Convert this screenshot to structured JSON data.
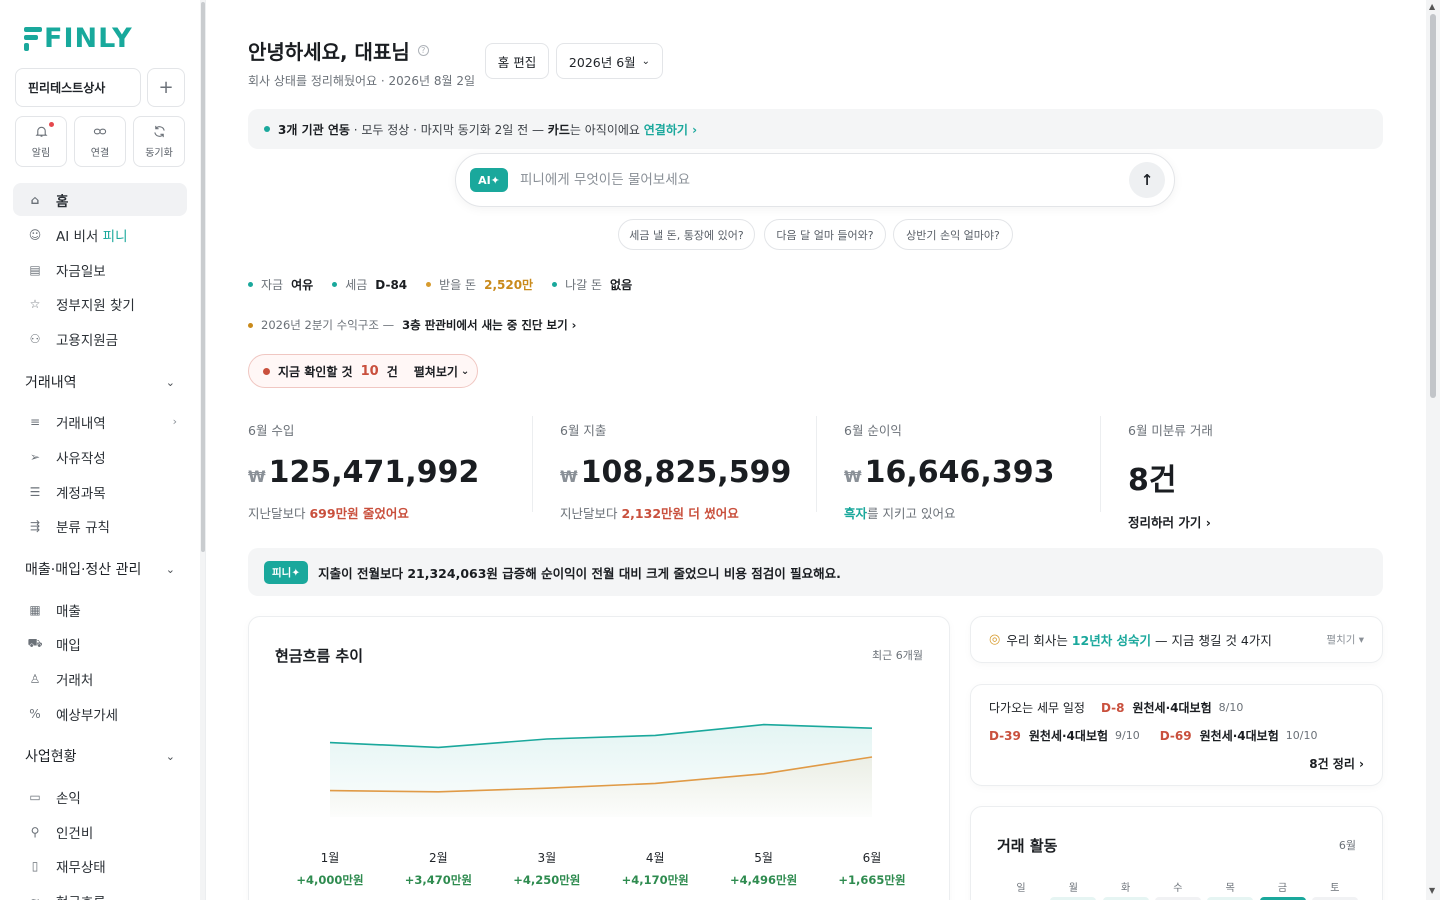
{
  "brand": {
    "logo": "FINLY",
    "accent": "#1aa89c"
  },
  "sidebar": {
    "company": "핀리테스트상사",
    "add": "+",
    "quick": [
      {
        "label": "알림",
        "icon": "bell-icon"
      },
      {
        "label": "연결",
        "icon": "link-icon"
      },
      {
        "label": "동기화",
        "icon": "sync-icon"
      }
    ],
    "top": [
      {
        "label": "홈",
        "icon": "home-icon"
      },
      {
        "label": "AI 비서",
        "label2": "피니",
        "icon": "robot-icon"
      },
      {
        "label": "자금일보",
        "icon": "report-icon"
      },
      {
        "label": "정부지원 찾기",
        "icon": "star-icon"
      },
      {
        "label": "고용지원금",
        "icon": "people-icon"
      }
    ],
    "sections": [
      {
        "title": "거래내역",
        "items": [
          "거래내역",
          "사유작성",
          "계정과목",
          "분류 규칙"
        ]
      },
      {
        "title": "매출·매입·정산 관리",
        "items": [
          "매출",
          "매입",
          "거래처",
          "예상부가세"
        ]
      },
      {
        "title": "사업현황",
        "items": [
          "손익",
          "인건비",
          "재무상태",
          "현금흐름"
        ]
      }
    ]
  },
  "header": {
    "greeting": "안녕하세요, 대표님",
    "help": "?",
    "subtitle": "회사 상태를 정리해뒀어요 · 2026년 8월 2일",
    "edit_home": "홈 편집",
    "month": "2026년 6월"
  },
  "banner": {
    "strong": "3개 기관 연동",
    "text": " · 모두 정상 · 마지막 동기화 2일 전 — ",
    "card": "카드",
    "text2": "는 아직이에요 ",
    "link": "연결하기 ›"
  },
  "ask": {
    "badge": "AI✦",
    "placeholder": "피니에게 무엇이든 물어보세요",
    "send": "↑"
  },
  "chips": [
    "세금 낼 돈, 통장에 있어?",
    "다음 달 얼마 들어와?",
    "상반기 손익 얼마야?"
  ],
  "status": [
    {
      "label": "자금",
      "value": "여유",
      "color": "#1aa89c"
    },
    {
      "label": "세금",
      "value": "D-84",
      "color": "#1aa89c"
    },
    {
      "label": "받을 돈",
      "value": "2,520만",
      "color": "#d79b2e"
    },
    {
      "label": "나갈 돈",
      "value": "없음",
      "color": "#1aa89c"
    }
  ],
  "insight": {
    "text": "2026년 2분기 수익구조 —",
    "strong": "3층 판관비에서 새는 중  진단 보기 ›"
  },
  "todo": {
    "label": "지금 확인할 것",
    "count": "10",
    "unit": "건",
    "expand": "펼쳐보기"
  },
  "kpis": [
    {
      "label": "6월 수입",
      "won": "₩",
      "value": "125,471,992",
      "sub_pre": "지난달보다 ",
      "sub_hl": "699만원 줄었어요",
      "sub_post": ""
    },
    {
      "label": "6월 지출",
      "won": "₩",
      "value": "108,825,599",
      "sub_pre": "지난달보다 ",
      "sub_hl": "2,132만원 더 썼어요",
      "sub_post": ""
    },
    {
      "label": "6월 순이익",
      "won": "₩",
      "value": "16,646,393",
      "sub_pre": "",
      "sub_hl": "흑자",
      "sub_post": "를 지키고 있어요"
    },
    {
      "label": "6월 미분류 거래",
      "won": "",
      "value": "8건",
      "sub_pre": "",
      "sub_hl": "정리하러 가기 ›",
      "sub_post": ""
    }
  ],
  "finy_note": {
    "badge": "피니✦",
    "text": "지출이 전월보다 21,324,063원 급증해 순이익이 전월 대비 크게 줄었으니 비용 점검이 필요해요."
  },
  "cashflow": {
    "title": "현금흐름 추이",
    "period": "최근 6개월",
    "months": [
      "1월",
      "2월",
      "3월",
      "4월",
      "5월",
      "6월"
    ],
    "net": [
      "+4,000만원",
      "+3,470만원",
      "+4,250만원",
      "+4,170만원",
      "+4,496만원",
      "+1,665만원"
    ]
  },
  "chart_data": {
    "type": "area",
    "title": "현금흐름 추이",
    "categories": [
      "1월",
      "2월",
      "3월",
      "4월",
      "5월",
      "6월"
    ],
    "series": [
      {
        "values": [
          62,
          58,
          65,
          68,
          77,
          74
        ],
        "color": "#1aa89c"
      },
      {
        "values": [
          22,
          21,
          24,
          28,
          36,
          50
        ],
        "color": "#e09a46"
      }
    ],
    "ylim": [
      0,
      100
    ]
  },
  "growth": {
    "icon": "compass-icon",
    "pre": "우리 회사는 ",
    "hl": "12년차 성숙기",
    "post": " — 지금 챙길 것 4가지",
    "fold": "펼치기 ▾"
  },
  "tax": {
    "title": "다가오는 세무 일정",
    "items": [
      {
        "d": "D-8",
        "name": "원천세·4대보험",
        "date": "8/10"
      },
      {
        "d": "D-39",
        "name": "원천세·4대보험",
        "date": "9/10"
      },
      {
        "d": "D-69",
        "name": "원천세·4대보험",
        "date": "10/10"
      }
    ],
    "more": "8건  정리 ›"
  },
  "activity": {
    "title": "거래 활동",
    "month": "6월",
    "weekdays": [
      "일",
      "월",
      "화",
      "수",
      "목",
      "금",
      "토"
    ]
  }
}
